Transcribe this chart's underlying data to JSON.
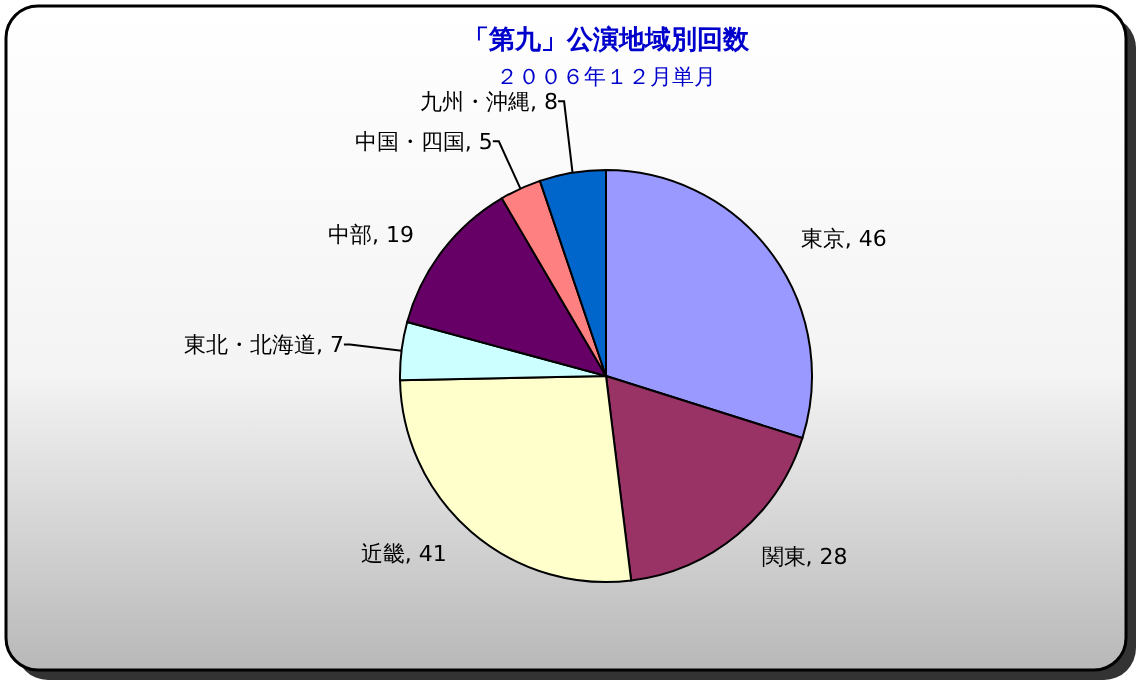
{
  "chart_data": {
    "type": "pie",
    "title": "「第九」公演地域別回数",
    "subtitle": "２００６年１２月単月",
    "categories": [
      "東京",
      "関東",
      "近畿",
      "東北・北海道",
      "中部",
      "中国・四国",
      "九州・沖縄"
    ],
    "values": [
      46,
      28,
      41,
      7,
      19,
      5,
      8
    ],
    "colors": [
      "#9999ff",
      "#993366",
      "#ffffcc",
      "#ccffff",
      "#660066",
      "#ff8080",
      "#0066cc"
    ],
    "value_labels": [
      ", 46",
      ", 28",
      ", 41",
      ", 7",
      ", 19",
      ", 5",
      ", 8"
    ]
  }
}
